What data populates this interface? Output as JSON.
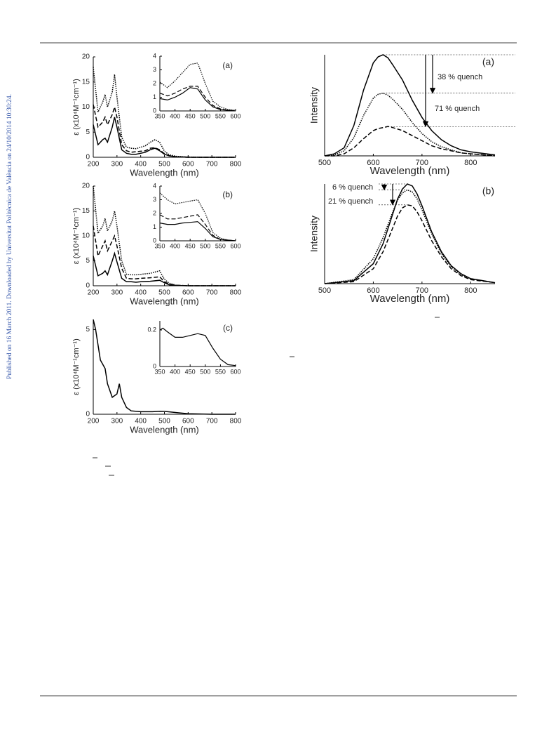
{
  "side_note": "Published on 16 March 2011. Downloaded by Universitat Politècnica de València on 24/10/2014 10:30:24.",
  "chart_data": [
    {
      "type": "line",
      "panel_label": "(a)",
      "xlabel": "Wavelength (nm)",
      "ylabel": "ε (x10⁴M⁻¹cm⁻¹)",
      "xlim": [
        200,
        800
      ],
      "xticks": [
        200,
        300,
        400,
        500,
        600,
        700,
        800
      ],
      "ylim": [
        0,
        20
      ],
      "yticks": [
        0,
        5,
        10,
        15,
        20
      ],
      "x": [
        200,
        220,
        240,
        250,
        260,
        280,
        290,
        300,
        320,
        340,
        360,
        380,
        400,
        420,
        440,
        460,
        480,
        500,
        520,
        550,
        600,
        650,
        700,
        800
      ],
      "series": [
        {
          "color": "#000000",
          "dash": "solid",
          "values": [
            6.5,
            2.5,
            3.5,
            3.8,
            3,
            6,
            8,
            6,
            1.5,
            0.8,
            0.6,
            0.6,
            0.8,
            1.0,
            1.5,
            1.8,
            1.3,
            0.6,
            0.3,
            0.1,
            0,
            0,
            0,
            0
          ]
        },
        {
          "color": "#000000",
          "dash": "dashed",
          "values": [
            10.5,
            6,
            7,
            8,
            6.5,
            8.5,
            10,
            8,
            2.5,
            1.3,
            1.0,
            1.1,
            1.2,
            1.3,
            1.8,
            1.9,
            1.5,
            0.7,
            0.3,
            0.1,
            0,
            0,
            0,
            0
          ]
        },
        {
          "color": "#000000",
          "dash": "dotted",
          "values": [
            18,
            9,
            11,
            12.5,
            10,
            13,
            16.5,
            12,
            4,
            2,
            1.8,
            1.7,
            2,
            2.3,
            3,
            3.5,
            3,
            1.2,
            0.5,
            0.2,
            0.05,
            0,
            0,
            0
          ]
        }
      ]
    },
    {
      "type": "line",
      "xlim": [
        350,
        600
      ],
      "xticks": [
        350,
        400,
        450,
        500,
        550,
        600
      ],
      "ylim": [
        0,
        4
      ],
      "yticks": [
        0,
        1,
        2,
        3,
        4
      ],
      "x": [
        350,
        375,
        400,
        425,
        450,
        475,
        500,
        525,
        550,
        575,
        600
      ],
      "series": [
        {
          "color": "#000000",
          "dash": "solid",
          "values": [
            0.9,
            0.8,
            1.0,
            1.3,
            1.7,
            1.6,
            0.8,
            0.3,
            0.1,
            0.05,
            0
          ]
        },
        {
          "color": "#000000",
          "dash": "dashed",
          "values": [
            1.3,
            1.1,
            1.3,
            1.6,
            1.8,
            1.8,
            1.0,
            0.4,
            0.15,
            0.05,
            0
          ]
        },
        {
          "color": "#000000",
          "dash": "dotted",
          "values": [
            2.1,
            1.7,
            2.2,
            2.8,
            3.4,
            3.5,
            2.0,
            0.7,
            0.3,
            0.1,
            0.05
          ]
        }
      ]
    },
    {
      "type": "line",
      "panel_label": "(b)",
      "xlabel": "Wavelength (nm)",
      "ylabel": "ε (x10⁴M⁻¹cm⁻¹)",
      "xlim": [
        200,
        800
      ],
      "xticks": [
        200,
        300,
        400,
        500,
        600,
        700,
        800
      ],
      "ylim": [
        0,
        20
      ],
      "yticks": [
        0,
        5,
        10,
        15,
        20
      ],
      "x": [
        200,
        220,
        240,
        250,
        260,
        280,
        290,
        300,
        320,
        340,
        360,
        380,
        400,
        440,
        480,
        500,
        520,
        550,
        600,
        700,
        800
      ],
      "series": [
        {
          "color": "#000000",
          "dash": "solid",
          "values": [
            6,
            2,
            2.5,
            3,
            2.2,
            5,
            6.5,
            4.8,
            1.5,
            0.8,
            0.8,
            0.7,
            0.8,
            0.9,
            1.1,
            0.6,
            0.2,
            0.05,
            0,
            0,
            0
          ]
        },
        {
          "color": "#000000",
          "dash": "dashed",
          "values": [
            12,
            6,
            8,
            9,
            7,
            9,
            10,
            8,
            3.5,
            1.5,
            1.4,
            1.4,
            1.5,
            1.6,
            1.8,
            0.8,
            0.3,
            0.1,
            0,
            0,
            0
          ]
        },
        {
          "color": "#000000",
          "dash": "dotted",
          "values": [
            20,
            10.5,
            12,
            13.5,
            11,
            13,
            15,
            12,
            5,
            2.3,
            2.2,
            2.2,
            2.3,
            2.5,
            3.0,
            1.3,
            0.5,
            0.1,
            0,
            0,
            0
          ]
        }
      ]
    },
    {
      "type": "line",
      "xlim": [
        350,
        600
      ],
      "xticks": [
        350,
        400,
        450,
        500,
        550,
        600
      ],
      "ylim": [
        0,
        4
      ],
      "yticks": [
        0,
        1,
        2,
        3,
        4
      ],
      "x": [
        350,
        375,
        400,
        425,
        450,
        475,
        500,
        525,
        550,
        575,
        600
      ],
      "series": [
        {
          "color": "#000000",
          "dash": "solid",
          "values": [
            1.3,
            1.2,
            1.2,
            1.3,
            1.35,
            1.4,
            0.9,
            0.3,
            0.1,
            0.05,
            0
          ]
        },
        {
          "color": "#000000",
          "dash": "dashed",
          "values": [
            1.9,
            1.6,
            1.6,
            1.7,
            1.8,
            1.9,
            1.2,
            0.4,
            0.1,
            0.05,
            0
          ]
        },
        {
          "color": "#000000",
          "dash": "dotted",
          "values": [
            3.5,
            3.0,
            2.7,
            2.8,
            2.9,
            3.0,
            2.0,
            0.6,
            0.2,
            0.05,
            0
          ]
        }
      ]
    },
    {
      "type": "line",
      "panel_label": "(c)",
      "xlabel": "Wavelength (nm)",
      "ylabel": "ε (x10⁴M⁻¹cm⁻¹)",
      "xlim": [
        200,
        800
      ],
      "xticks": [
        200,
        300,
        400,
        500,
        600,
        700,
        800
      ],
      "ylim": [
        0,
        5.6
      ],
      "yticks": [
        0,
        5
      ],
      "x": [
        200,
        210,
        230,
        250,
        260,
        280,
        300,
        310,
        320,
        340,
        360,
        400,
        450,
        480,
        500,
        550,
        600,
        700,
        800
      ],
      "series": [
        {
          "color": "#000000",
          "dash": "solid",
          "values": [
            5.6,
            5,
            3.2,
            2.7,
            1.8,
            1,
            1.2,
            1.8,
            1,
            0.4,
            0.2,
            0.15,
            0.15,
            0.18,
            0.17,
            0.1,
            0.03,
            0,
            0
          ]
        }
      ]
    },
    {
      "type": "line",
      "xlim": [
        350,
        600
      ],
      "xticks": [
        350,
        400,
        450,
        500,
        550,
        600
      ],
      "ylim": [
        0,
        0.25
      ],
      "yticks": [
        0,
        0.2
      ],
      "x": [
        350,
        360,
        375,
        400,
        425,
        450,
        475,
        500,
        525,
        550,
        575,
        600
      ],
      "series": [
        {
          "color": "#000000",
          "dash": "solid",
          "values": [
            0.2,
            0.21,
            0.19,
            0.16,
            0.16,
            0.17,
            0.18,
            0.17,
            0.1,
            0.04,
            0.01,
            0.005
          ]
        }
      ]
    },
    {
      "type": "line",
      "panel_label": "(a)",
      "xlabel": "Wavelength (nm)",
      "ylabel": "Intensity",
      "xlim": [
        500,
        850
      ],
      "xticks": [
        500,
        600,
        700,
        800
      ],
      "ylim": [
        0,
        1
      ],
      "annotations": [
        "38 % quench",
        "71 % quench"
      ],
      "x": [
        500,
        520,
        540,
        560,
        580,
        600,
        610,
        620,
        630,
        640,
        660,
        680,
        700,
        720,
        740,
        760,
        780,
        800,
        850
      ],
      "series": [
        {
          "color": "#000000",
          "dash": "solid",
          "values": [
            0,
            0.02,
            0.08,
            0.3,
            0.65,
            0.92,
            0.98,
            1.0,
            0.97,
            0.9,
            0.75,
            0.55,
            0.38,
            0.25,
            0.16,
            0.1,
            0.06,
            0.04,
            0.01
          ]
        },
        {
          "color": "#000000",
          "dash": "dotted",
          "values": [
            0,
            0.01,
            0.05,
            0.18,
            0.4,
            0.57,
            0.61,
            0.62,
            0.6,
            0.56,
            0.46,
            0.33,
            0.22,
            0.14,
            0.09,
            0.06,
            0.03,
            0.02,
            0
          ]
        },
        {
          "color": "#000000",
          "dash": "dashed",
          "values": [
            0,
            0,
            0.02,
            0.08,
            0.17,
            0.25,
            0.27,
            0.28,
            0.29,
            0.28,
            0.25,
            0.2,
            0.15,
            0.1,
            0.07,
            0.05,
            0.03,
            0.02,
            0
          ]
        }
      ]
    },
    {
      "type": "line",
      "panel_label": "(b)",
      "xlabel": "Wavelength (nm)",
      "ylabel": "Intensity",
      "xlim": [
        500,
        850
      ],
      "xticks": [
        500,
        600,
        700,
        800
      ],
      "ylim": [
        0,
        1
      ],
      "annotations": [
        "6 % quench",
        "21 % quench"
      ],
      "x": [
        500,
        560,
        600,
        620,
        640,
        650,
        660,
        670,
        680,
        690,
        700,
        720,
        740,
        760,
        780,
        800,
        850
      ],
      "series": [
        {
          "color": "#000000",
          "dash": "solid",
          "values": [
            0,
            0.03,
            0.2,
            0.4,
            0.7,
            0.85,
            0.95,
            1.0,
            0.98,
            0.9,
            0.78,
            0.52,
            0.32,
            0.18,
            0.1,
            0.05,
            0.01
          ]
        },
        {
          "color": "#000000",
          "dash": "dotted",
          "values": [
            0,
            0.04,
            0.25,
            0.46,
            0.72,
            0.84,
            0.91,
            0.94,
            0.92,
            0.85,
            0.74,
            0.5,
            0.3,
            0.17,
            0.09,
            0.05,
            0.01
          ]
        },
        {
          "color": "#000000",
          "dash": "dashed",
          "values": [
            0,
            0.02,
            0.15,
            0.32,
            0.56,
            0.68,
            0.76,
            0.79,
            0.78,
            0.72,
            0.63,
            0.43,
            0.27,
            0.15,
            0.08,
            0.04,
            0.01
          ]
        }
      ]
    }
  ]
}
